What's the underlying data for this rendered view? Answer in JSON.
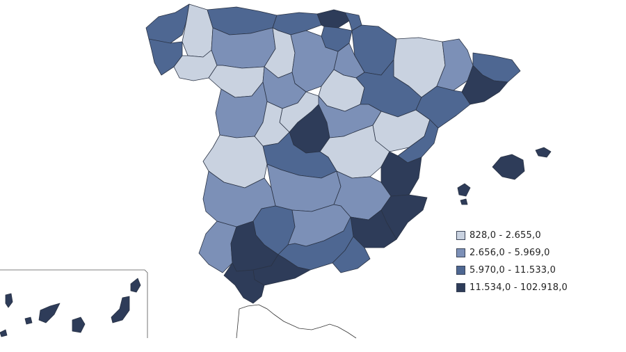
{
  "map": {
    "region": "Spain",
    "legend": [
      {
        "label": "828,0 - 2.655,0",
        "color": "#c9d2e0"
      },
      {
        "label": "2.656,0 - 5.969,0",
        "color": "#7c90b7"
      },
      {
        "label": "5.970,0 - 11.533,0",
        "color": "#4e6792"
      },
      {
        "label": "11.534,0 - 102.918,0",
        "color": "#2e3c59"
      }
    ]
  }
}
